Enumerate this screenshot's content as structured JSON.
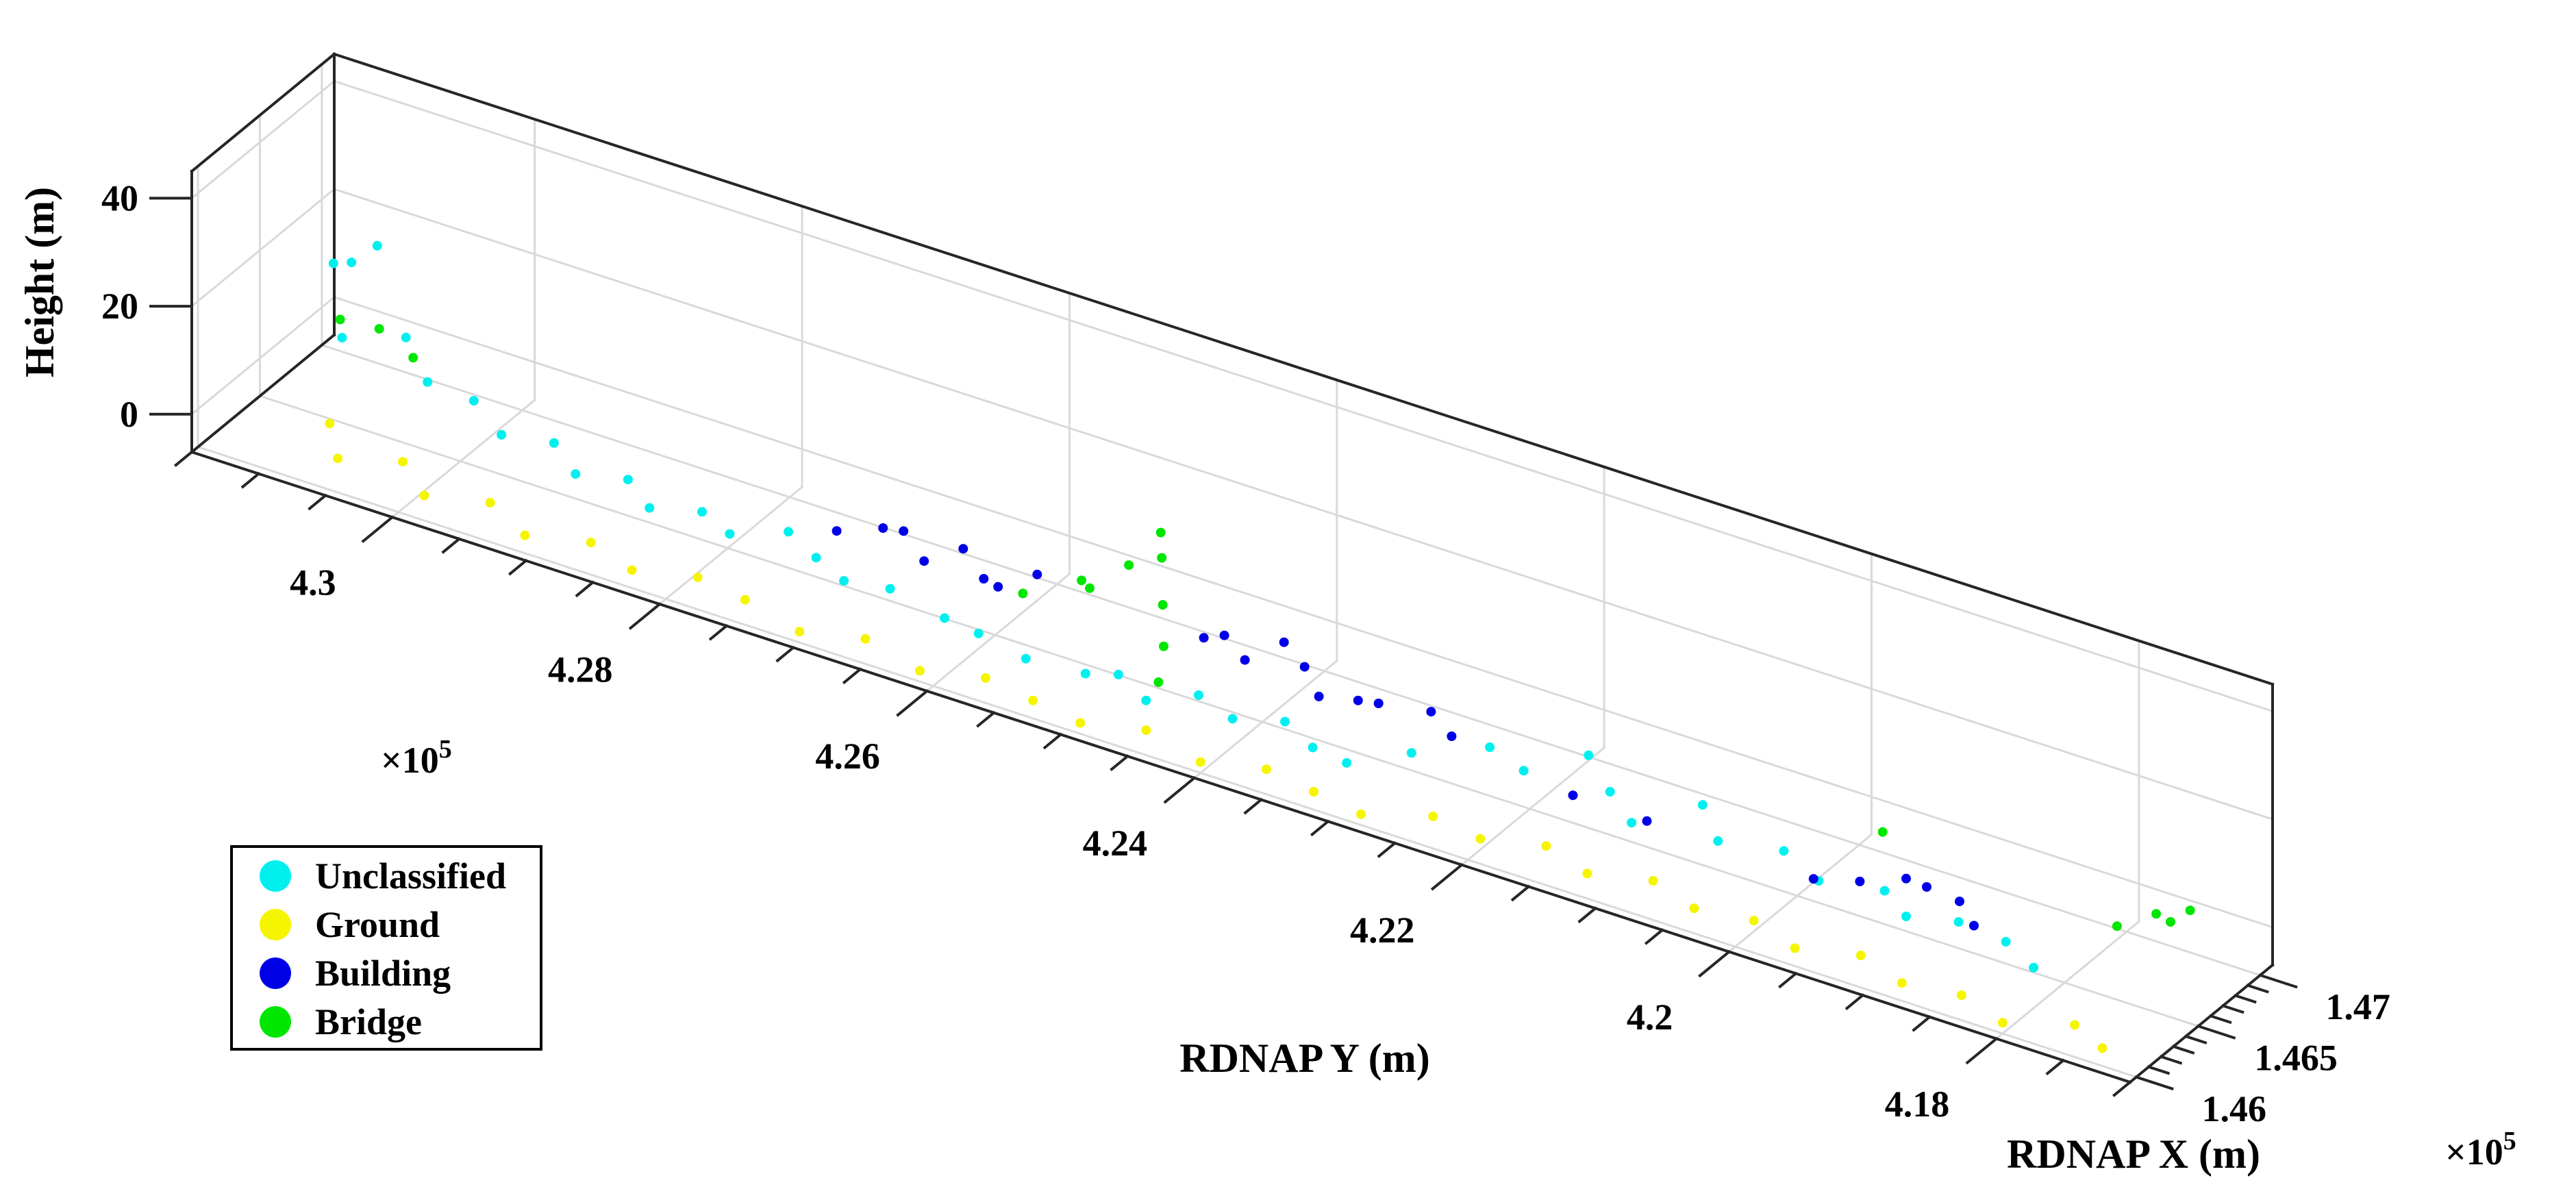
{
  "chart_data": {
    "type": "scatter",
    "subtype": "3d-point-cloud",
    "title": "",
    "xlabel": "RDNAP X (m)",
    "ylabel": "RDNAP Y (m)",
    "zlabel": "Height (m)",
    "x_multiplier": "×10",
    "x_multiplier_exp": "5",
    "y_multiplier": "×10",
    "y_multiplier_exp": "5",
    "xlim": [
      145950,
      147100
    ],
    "ylim": [
      417000,
      431500
    ],
    "zlim": [
      -7,
      45
    ],
    "xticks": [
      146000,
      146500,
      147000
    ],
    "xtick_labels": [
      "1.46",
      "1.465",
      "1.47"
    ],
    "yticks": [
      418000,
      420000,
      422000,
      424000,
      426000,
      428000,
      430000
    ],
    "ytick_labels": [
      "4.18",
      "4.2",
      "4.22",
      "4.24",
      "4.26",
      "4.28",
      "4.3"
    ],
    "zticks": [
      0,
      20,
      40
    ],
    "ztick_labels": [
      "0",
      "20",
      "40"
    ],
    "grid": true,
    "legend_position": "bottom-left",
    "series": [
      {
        "name": "Unclassified",
        "color": "#00f0f0",
        "points": [
          [
            146700,
            431000,
            18
          ],
          [
            146500,
            430950,
            22
          ],
          [
            146800,
            430900,
            20
          ],
          [
            146300,
            430700,
            14
          ],
          [
            146600,
            430500,
            10
          ],
          [
            146450,
            430200,
            7
          ],
          [
            146500,
            429900,
            5
          ],
          [
            146400,
            429600,
            3
          ],
          [
            146500,
            429300,
            2
          ],
          [
            146350,
            429000,
            1.5
          ],
          [
            146450,
            428700,
            1
          ],
          [
            146300,
            428400,
            1
          ],
          [
            146400,
            428100,
            0.8
          ],
          [
            146300,
            427800,
            1
          ],
          [
            146450,
            427500,
            1
          ],
          [
            146350,
            427200,
            0.5
          ],
          [
            146250,
            426900,
            0.5
          ],
          [
            146300,
            426600,
            0.5
          ],
          [
            146200,
            426100,
            1
          ],
          [
            146150,
            425800,
            1.5
          ],
          [
            146100,
            425400,
            1
          ],
          [
            146150,
            425000,
            0.5
          ],
          [
            146200,
            424800,
            1
          ],
          [
            146100,
            424500,
            0.5
          ],
          [
            146200,
            424200,
            2
          ],
          [
            146150,
            423900,
            1
          ],
          [
            146250,
            423600,
            1
          ],
          [
            146150,
            423300,
            0.5
          ],
          [
            146100,
            423000,
            1
          ],
          [
            146300,
            422700,
            1.5
          ],
          [
            146500,
            422300,
            2
          ],
          [
            146450,
            422000,
            1
          ],
          [
            146650,
            421700,
            2.5
          ],
          [
            146500,
            421400,
            1
          ],
          [
            146350,
            421100,
            0.5
          ],
          [
            146600,
            420800,
            1.5
          ],
          [
            146400,
            420500,
            1
          ],
          [
            146500,
            420100,
            0.5
          ],
          [
            146350,
            419700,
            1
          ],
          [
            146450,
            419300,
            0.5
          ],
          [
            146300,
            419000,
            1
          ],
          [
            146400,
            418700,
            0.5
          ],
          [
            146350,
            418300,
            1
          ],
          [
            146250,
            418000,
            0.5
          ]
        ]
      },
      {
        "name": "Ground",
        "color": "#f5f500",
        "points": [
          [
            146200,
            430700,
            0
          ],
          [
            146050,
            430500,
            -2
          ],
          [
            146250,
            430200,
            -4
          ],
          [
            146100,
            429900,
            -5
          ],
          [
            146200,
            429500,
            -5
          ],
          [
            146050,
            429100,
            -5
          ],
          [
            146150,
            428700,
            -5
          ],
          [
            146050,
            428300,
            -5
          ],
          [
            146150,
            427900,
            -5
          ],
          [
            146100,
            427500,
            -5
          ],
          [
            146000,
            427000,
            -5
          ],
          [
            146100,
            426600,
            -5
          ],
          [
            146000,
            426100,
            -5
          ],
          [
            146100,
            425700,
            -5
          ],
          [
            146050,
            425300,
            -5
          ],
          [
            146000,
            424900,
            -5
          ],
          [
            146100,
            424500,
            -5
          ],
          [
            146000,
            424000,
            -5
          ],
          [
            146100,
            423600,
            -5
          ],
          [
            146050,
            423200,
            -5
          ],
          [
            146000,
            422800,
            -5
          ],
          [
            146150,
            422400,
            -5
          ],
          [
            146100,
            422000,
            -5
          ],
          [
            146200,
            421600,
            -5
          ],
          [
            146100,
            421200,
            -5
          ],
          [
            146200,
            420800,
            -5
          ],
          [
            146100,
            420400,
            -5
          ],
          [
            146150,
            420000,
            -5
          ],
          [
            146050,
            419600,
            -5
          ],
          [
            146150,
            419200,
            -5
          ],
          [
            146050,
            418800,
            -5
          ],
          [
            146100,
            418400,
            -5
          ],
          [
            146000,
            418000,
            -5
          ],
          [
            146150,
            417600,
            -5
          ],
          [
            146050,
            417300,
            -5
          ]
        ]
      },
      {
        "name": "Building",
        "color": "#0000e6",
        "points": [
          [
            146300,
            427000,
            8
          ],
          [
            146350,
            426700,
            10
          ],
          [
            146300,
            426500,
            12
          ],
          [
            146250,
            426300,
            9
          ],
          [
            146350,
            426100,
            11
          ],
          [
            146300,
            425900,
            8
          ],
          [
            146200,
            425700,
            10
          ],
          [
            146300,
            425500,
            12
          ],
          [
            146350,
            424300,
            9
          ],
          [
            146300,
            424100,
            12
          ],
          [
            146250,
            423900,
            10
          ],
          [
            146350,
            423700,
            13
          ],
          [
            146300,
            423500,
            11
          ],
          [
            146200,
            423300,
            9
          ],
          [
            146300,
            423100,
            8
          ],
          [
            146250,
            422900,
            10
          ],
          [
            146350,
            422600,
            9
          ],
          [
            146300,
            422400,
            7
          ],
          [
            146200,
            421400,
            6
          ],
          [
            146150,
            420800,
            7
          ],
          [
            146200,
            419600,
            5
          ],
          [
            146250,
            419300,
            6
          ],
          [
            146300,
            419000,
            8
          ],
          [
            146250,
            418800,
            9
          ],
          [
            146300,
            418600,
            7
          ],
          [
            146200,
            418400,
            6
          ]
        ]
      },
      {
        "name": "Bridge",
        "color": "#00e600",
        "points": [
          [
            146500,
            430900,
            12
          ],
          [
            146600,
            430700,
            10
          ],
          [
            146550,
            430400,
            8
          ],
          [
            146400,
            425700,
            5
          ],
          [
            146550,
            425400,
            7
          ],
          [
            146400,
            425200,
            10
          ],
          [
            146500,
            425000,
            14
          ],
          [
            146650,
            424900,
            18
          ],
          [
            146550,
            424800,
            16
          ],
          [
            146450,
            424700,
            10
          ],
          [
            146350,
            424600,
            5
          ],
          [
            146200,
            424500,
            2
          ],
          [
            146650,
            419500,
            6
          ],
          [
            146600,
            417700,
            4
          ],
          [
            146700,
            417500,
            6
          ],
          [
            146600,
            417300,
            8
          ],
          [
            146650,
            417200,
            10
          ]
        ]
      }
    ]
  },
  "legend": {
    "items": [
      {
        "label": "Unclassified",
        "color": "#00f0f0"
      },
      {
        "label": "Ground",
        "color": "#f5f500"
      },
      {
        "label": "Building",
        "color": "#0000e6"
      },
      {
        "label": "Bridge",
        "color": "#00e600"
      }
    ]
  }
}
